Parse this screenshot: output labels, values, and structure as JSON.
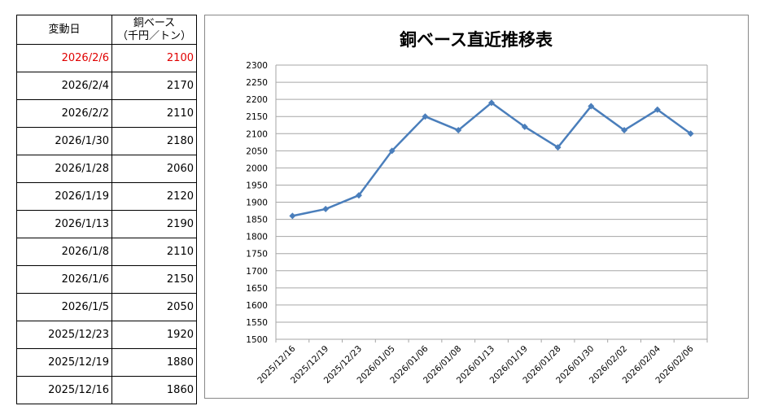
{
  "table": {
    "header_date": "変動日",
    "header_value_line1": "銅ベース",
    "header_value_line2": "（千円／トン）",
    "rows": [
      {
        "date": "2026/2/6",
        "value": "2100",
        "highlight": true
      },
      {
        "date": "2026/2/4",
        "value": "2170",
        "highlight": false
      },
      {
        "date": "2026/2/2",
        "value": "2110",
        "highlight": false
      },
      {
        "date": "2026/1/30",
        "value": "2180",
        "highlight": false
      },
      {
        "date": "2026/1/28",
        "value": "2060",
        "highlight": false
      },
      {
        "date": "2026/1/19",
        "value": "2120",
        "highlight": false
      },
      {
        "date": "2026/1/13",
        "value": "2190",
        "highlight": false
      },
      {
        "date": "2026/1/8",
        "value": "2110",
        "highlight": false
      },
      {
        "date": "2026/1/6",
        "value": "2150",
        "highlight": false
      },
      {
        "date": "2026/1/5",
        "value": "2050",
        "highlight": false
      },
      {
        "date": "2025/12/23",
        "value": "1920",
        "highlight": false
      },
      {
        "date": "2025/12/19",
        "value": "1880",
        "highlight": false
      },
      {
        "date": "2025/12/16",
        "value": "1860",
        "highlight": false
      }
    ],
    "highlight_color": "#e00000"
  },
  "chart_data": {
    "type": "line",
    "title": "銅ベース直近推移表",
    "xlabel": "",
    "ylabel": "",
    "x": [
      "2025/12/16",
      "2025/12/19",
      "2025/12/23",
      "2026/01/05",
      "2026/01/06",
      "2026/01/08",
      "2026/01/13",
      "2026/01/19",
      "2026/01/28",
      "2026/01/30",
      "2026/02/02",
      "2026/02/04",
      "2026/02/06"
    ],
    "series": [
      {
        "values": [
          1860,
          1880,
          1920,
          2050,
          2150,
          2110,
          2190,
          2120,
          2060,
          2180,
          2110,
          2170,
          2100
        ],
        "color": "#4a7ebb"
      }
    ],
    "ylim": [
      1500,
      2300
    ],
    "y_ticks": [
      "2300",
      "2250",
      "2200",
      "2150",
      "2100",
      "2050",
      "2000",
      "1950",
      "1900",
      "1850",
      "1800",
      "1750",
      "1700",
      "1650",
      "1600",
      "1550",
      "1500"
    ],
    "grid": true,
    "legend": "none",
    "marker": "diamond"
  }
}
